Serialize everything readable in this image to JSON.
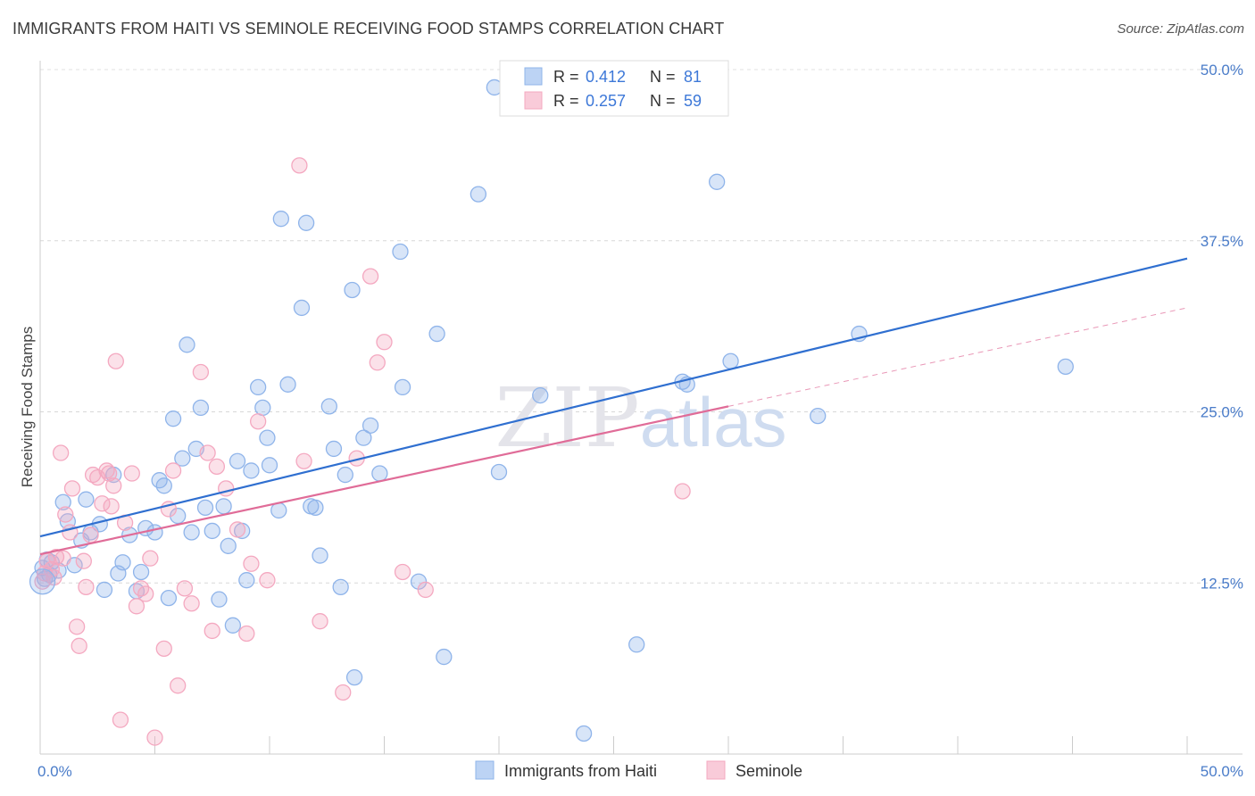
{
  "title": "IMMIGRANTS FROM HAITI VS SEMINOLE RECEIVING FOOD STAMPS CORRELATION CHART",
  "source": "Source: ZipAtlas.com",
  "chart_data": {
    "type": "scatter",
    "ylabel": "Receiving Food Stamps",
    "xlim": [
      0,
      50
    ],
    "ylim": [
      0,
      50
    ],
    "x_tick_labels": [
      "0.0%",
      "50.0%"
    ],
    "y_ticks": [
      12.5,
      25.0,
      37.5,
      50.0
    ],
    "y_tick_labels": [
      "12.5%",
      "25.0%",
      "37.5%",
      "50.0%"
    ],
    "grid": true,
    "legend_position": "top-center",
    "watermark": "ZIPatlas",
    "stats": [
      {
        "r_label": "R =",
        "r": "0.412",
        "n_label": "N =",
        "n": "81"
      },
      {
        "r_label": "R =",
        "r": "0.257",
        "n_label": "N =",
        "n": "59"
      }
    ],
    "series": [
      {
        "name": "Immigrants from Haiti",
        "color": "#8fb4ea",
        "line_color": "#2f6fd0",
        "trend": {
          "x0": 0,
          "y0": 15.9,
          "x1": 50,
          "y1": 36.2,
          "dashed_to": null
        },
        "points": [
          [
            0.2,
            12.8
          ],
          [
            0.5,
            14.0
          ],
          [
            0.8,
            13.4
          ],
          [
            1.0,
            18.4
          ],
          [
            1.2,
            17.0
          ],
          [
            1.5,
            13.8
          ],
          [
            1.8,
            15.6
          ],
          [
            2.0,
            18.6
          ],
          [
            2.2,
            16.2
          ],
          [
            2.8,
            12.0
          ],
          [
            2.6,
            16.8
          ],
          [
            3.2,
            20.4
          ],
          [
            3.4,
            13.2
          ],
          [
            3.6,
            14.0
          ],
          [
            3.9,
            16.0
          ],
          [
            4.2,
            11.9
          ],
          [
            4.4,
            13.3
          ],
          [
            4.6,
            16.5
          ],
          [
            5.0,
            16.2
          ],
          [
            5.2,
            20.0
          ],
          [
            5.4,
            19.6
          ],
          [
            5.6,
            11.4
          ],
          [
            5.8,
            24.5
          ],
          [
            6.0,
            17.4
          ],
          [
            6.2,
            21.6
          ],
          [
            6.4,
            29.9
          ],
          [
            6.6,
            16.2
          ],
          [
            6.8,
            22.3
          ],
          [
            7.0,
            25.3
          ],
          [
            7.2,
            18.0
          ],
          [
            7.5,
            16.3
          ],
          [
            7.8,
            11.3
          ],
          [
            8.0,
            18.1
          ],
          [
            8.2,
            15.2
          ],
          [
            8.4,
            9.4
          ],
          [
            8.6,
            21.4
          ],
          [
            8.8,
            16.3
          ],
          [
            9.0,
            12.7
          ],
          [
            9.2,
            20.7
          ],
          [
            9.5,
            26.8
          ],
          [
            9.7,
            25.3
          ],
          [
            9.9,
            23.1
          ],
          [
            10.0,
            21.1
          ],
          [
            10.4,
            17.8
          ],
          [
            10.5,
            39.1
          ],
          [
            10.8,
            27.0
          ],
          [
            11.4,
            32.6
          ],
          [
            11.6,
            38.8
          ],
          [
            11.8,
            18.1
          ],
          [
            12.0,
            18.0
          ],
          [
            12.2,
            14.5
          ],
          [
            12.6,
            25.4
          ],
          [
            12.8,
            22.3
          ],
          [
            13.1,
            12.2
          ],
          [
            13.3,
            20.4
          ],
          [
            13.6,
            33.9
          ],
          [
            13.7,
            5.6
          ],
          [
            14.1,
            23.1
          ],
          [
            14.4,
            24.0
          ],
          [
            14.8,
            20.5
          ],
          [
            15.8,
            26.8
          ],
          [
            15.7,
            36.7
          ],
          [
            16.5,
            12.6
          ],
          [
            17.3,
            30.7
          ],
          [
            17.6,
            7.1
          ],
          [
            19.1,
            40.9
          ],
          [
            19.8,
            48.7
          ],
          [
            20.0,
            20.6
          ],
          [
            21.8,
            26.2
          ],
          [
            23.7,
            1.5
          ],
          [
            26.0,
            8.0
          ],
          [
            28.0,
            27.2
          ],
          [
            28.2,
            27.0
          ],
          [
            29.5,
            41.8
          ],
          [
            30.1,
            28.7
          ],
          [
            33.9,
            24.7
          ],
          [
            35.7,
            30.7
          ],
          [
            44.7,
            28.3
          ],
          [
            0.1,
            13.6
          ],
          [
            0.3,
            14.2
          ],
          [
            0.4,
            13.1
          ]
        ]
      },
      {
        "name": "Seminole",
        "color": "#f4a8c0",
        "line_color": "#e06c98",
        "trend": {
          "x0": 0,
          "y0": 14.6,
          "x1": 30,
          "y1": 25.4,
          "dashed_to": {
            "x": 50,
            "y": 32.6
          }
        },
        "points": [
          [
            0.1,
            12.6
          ],
          [
            0.3,
            14.1
          ],
          [
            0.5,
            13.5
          ],
          [
            0.7,
            14.4
          ],
          [
            0.9,
            22.0
          ],
          [
            1.1,
            17.5
          ],
          [
            1.3,
            16.2
          ],
          [
            1.4,
            19.4
          ],
          [
            1.6,
            9.3
          ],
          [
            1.7,
            7.9
          ],
          [
            1.9,
            14.1
          ],
          [
            2.0,
            12.2
          ],
          [
            2.2,
            16.0
          ],
          [
            2.3,
            20.4
          ],
          [
            2.5,
            20.2
          ],
          [
            2.7,
            18.3
          ],
          [
            2.9,
            20.7
          ],
          [
            3.0,
            20.5
          ],
          [
            3.1,
            18.1
          ],
          [
            3.2,
            19.6
          ],
          [
            3.3,
            28.7
          ],
          [
            3.5,
            2.5
          ],
          [
            3.7,
            16.9
          ],
          [
            4.0,
            20.5
          ],
          [
            4.2,
            10.8
          ],
          [
            4.4,
            12.1
          ],
          [
            4.6,
            11.7
          ],
          [
            4.8,
            14.3
          ],
          [
            5.0,
            1.2
          ],
          [
            5.4,
            7.7
          ],
          [
            5.6,
            17.9
          ],
          [
            5.8,
            20.7
          ],
          [
            6.0,
            5.0
          ],
          [
            6.3,
            12.1
          ],
          [
            6.6,
            11.0
          ],
          [
            7.0,
            27.9
          ],
          [
            7.3,
            22.0
          ],
          [
            7.5,
            9.0
          ],
          [
            7.7,
            21.0
          ],
          [
            8.1,
            19.4
          ],
          [
            8.6,
            16.4
          ],
          [
            9.0,
            8.8
          ],
          [
            9.2,
            13.9
          ],
          [
            9.5,
            24.3
          ],
          [
            9.9,
            12.7
          ],
          [
            11.3,
            43.0
          ],
          [
            11.5,
            21.4
          ],
          [
            12.2,
            9.7
          ],
          [
            13.2,
            4.5
          ],
          [
            13.8,
            21.6
          ],
          [
            14.4,
            34.9
          ],
          [
            14.7,
            28.6
          ],
          [
            15.0,
            30.1
          ],
          [
            15.8,
            13.3
          ],
          [
            16.8,
            12.0
          ],
          [
            28.0,
            19.2
          ],
          [
            0.2,
            13.2
          ],
          [
            0.6,
            12.9
          ],
          [
            1.0,
            14.3
          ]
        ]
      }
    ]
  }
}
